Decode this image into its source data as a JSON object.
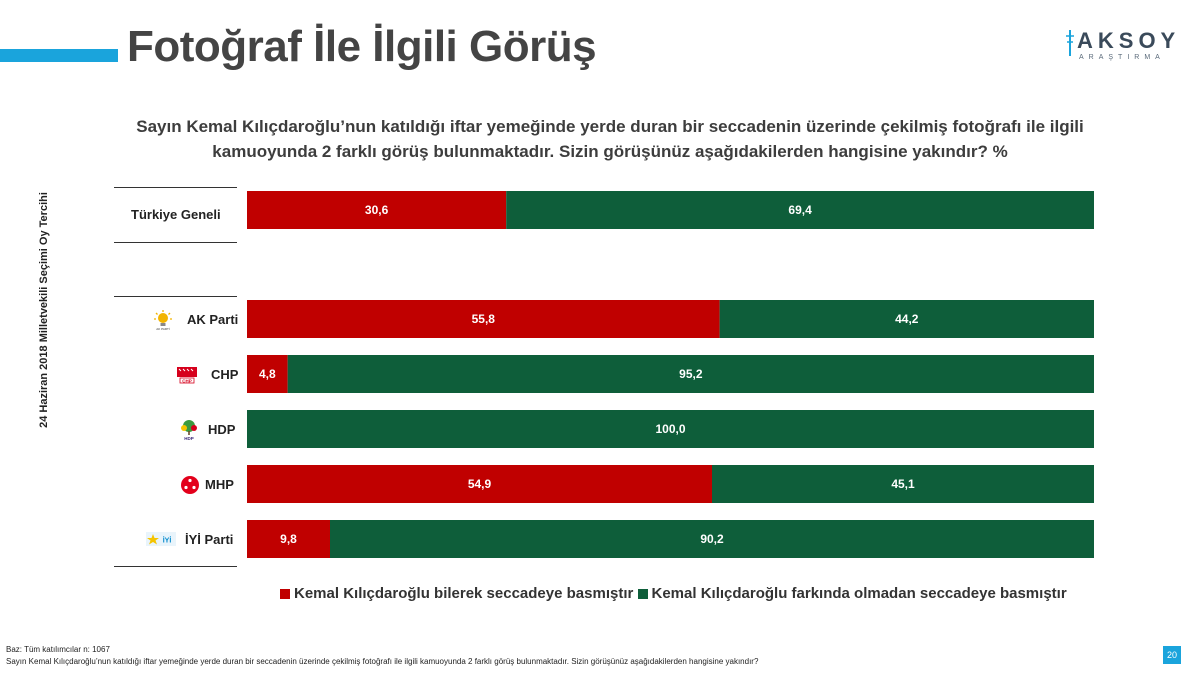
{
  "header": {
    "title": "Fotoğraf İle İlgili Görüş",
    "logo_text": "AKSOY",
    "logo_sub": "ARAŞTIRMA"
  },
  "question": "Sayın Kemal Kılıçdaroğlu’nun katıldığı iftar yemeğinde yerde duran bir seccadenin üzerinde çekilmiş fotoğrafı ile ilgili kamuoyunda 2 farklı görüş bulunmaktadır. Sizin görüşünüz aşağıdakilerden hangisine yakındır? %",
  "group_label": "24 Haziran 2018 Milletvekili Seçimi Oy Tercihi",
  "colors": {
    "red": "#c00000",
    "green": "#0e5e3a",
    "accent": "#1aa4dc"
  },
  "chart_data": {
    "type": "bar",
    "orientation": "horizontal",
    "stacked": true,
    "categories": [
      "Türkiye Geneli",
      "AK Parti",
      "CHP",
      "HDP",
      "MHP",
      "İYİ Parti"
    ],
    "series": [
      {
        "name": "Kemal Kılıçdaroğlu bilerek seccadeye basmıştır",
        "values": [
          30.6,
          55.8,
          4.8,
          0.0,
          54.9,
          9.8
        ],
        "labels": [
          "30,6",
          "55,8",
          "4,8",
          "",
          "54,9",
          "9,8"
        ]
      },
      {
        "name": "Kemal Kılıçdaroğlu farkında olmadan seccadeye basmıştır",
        "values": [
          69.4,
          44.2,
          95.2,
          100.0,
          45.1,
          90.2
        ],
        "labels": [
          "69,4",
          "44,2",
          "95,2",
          "100,0",
          "45,1",
          "90,2"
        ]
      }
    ],
    "xlim": [
      0,
      100
    ],
    "legend": "bottom"
  },
  "footer": {
    "base": "Baz: Tüm katılımcılar n: 1067",
    "note": "Sayın Kemal Kılıçdaroğlu’nun katıldığı iftar yemeğinde yerde duran bir seccadenin üzerinde çekilmiş fotoğrafı ile ilgili kamuoyunda 2 farklı görüş bulunmaktadır. Sizin görüşünüz aşağıdakilerden hangisine yakındır?",
    "page": "20"
  }
}
